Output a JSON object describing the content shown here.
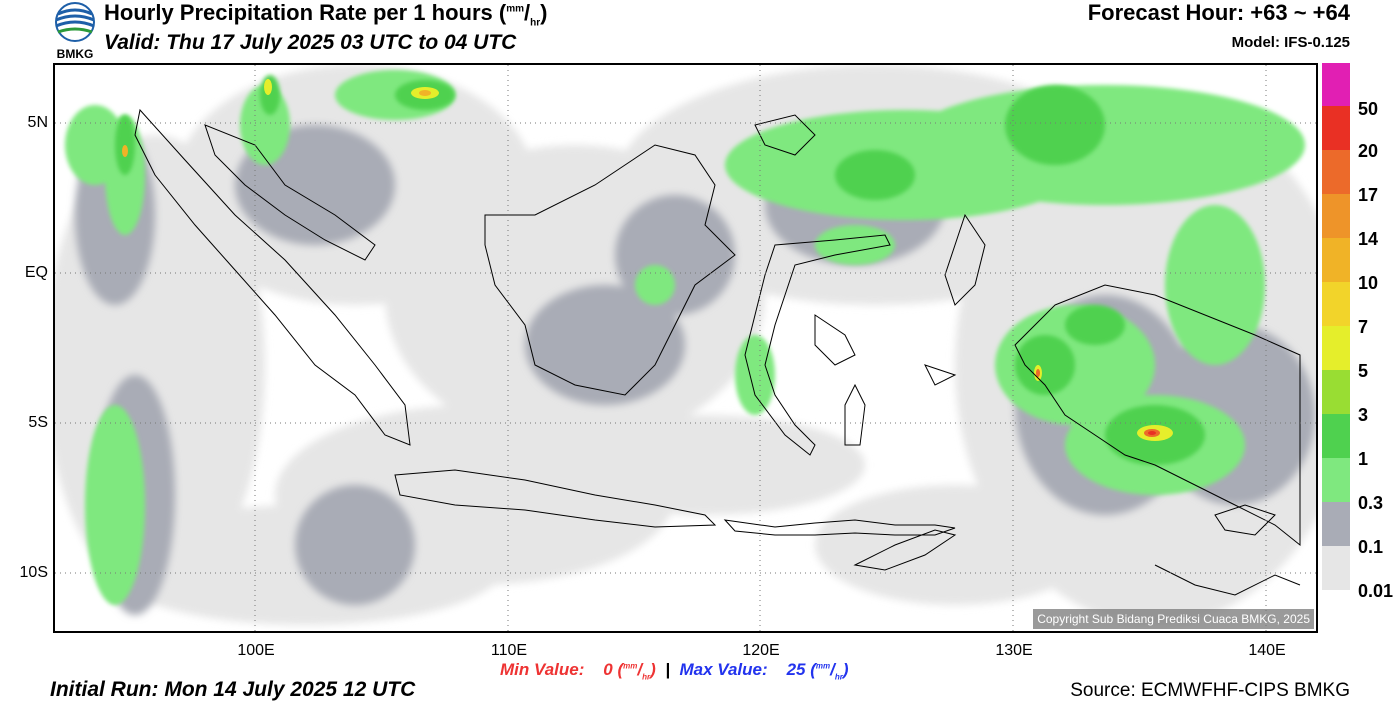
{
  "header": {
    "title": "Hourly Precipitation Rate per 1 hours",
    "title_unit_num": "mm",
    "title_unit_den": "hr",
    "valid": "Valid: Thu 17 July 2025 03 UTC to 04 UTC",
    "forecast_hour": "Forecast Hour: +63 ~ +64",
    "model": "Model: IFS-0.125",
    "logo_text": "BMKG"
  },
  "map": {
    "lat_labels": [
      "5N",
      "EQ",
      "5S",
      "10S"
    ],
    "lon_labels": [
      "100E",
      "110E",
      "120E",
      "130E",
      "140E"
    ],
    "copyright": "Copyright Sub Bidang Prediksi Cuaca BMKG, 2025",
    "extent": {
      "lon_min": 92,
      "lon_max": 142,
      "lat_min": -12,
      "lat_max": 7
    },
    "gridlines": "dotted"
  },
  "colorbar": {
    "levels": [
      "0.01",
      "0.1",
      "0.3",
      "1",
      "3",
      "5",
      "7",
      "10",
      "14",
      "17",
      "20",
      "50"
    ],
    "colors": [
      "#e6e6e6",
      "#a9acb6",
      "#7fe87f",
      "#4fd14f",
      "#99dd33",
      "#e5ee2b",
      "#f2d42a",
      "#f0b327",
      "#ee9429",
      "#ec6a2a",
      "#e93024",
      "#e11fb3"
    ]
  },
  "footer": {
    "min_label": "Min Value:",
    "min_value": "0",
    "max_label": "Max Value:",
    "max_value": "25",
    "unit_num": "mm",
    "unit_den": "hr",
    "separator": "|",
    "initial_run": "Initial Run: Mon 14 July 2025 12 UTC",
    "source": "Source: ECMWFHF-CIPS BMKG"
  }
}
